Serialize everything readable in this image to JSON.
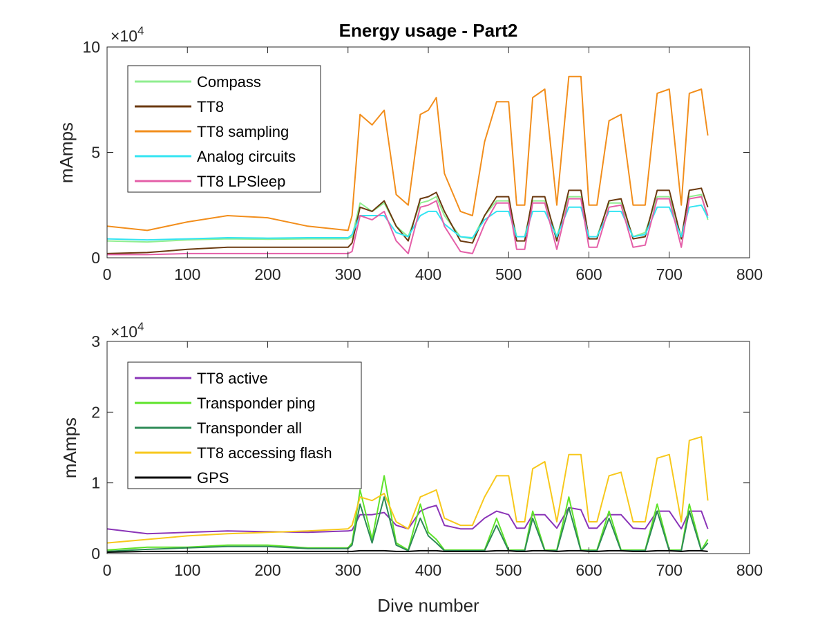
{
  "chart_data": [
    {
      "type": "line",
      "title": "Energy usage - Part2",
      "xlabel": "",
      "ylabel": "mAmps",
      "exponent_label": "×10",
      "exponent_power": "4",
      "xlim": [
        0,
        800
      ],
      "ylim": [
        0,
        100000
      ],
      "xticks": [
        "0",
        "100",
        "200",
        "300",
        "400",
        "500",
        "600",
        "700",
        "800"
      ],
      "yticks": [
        "0",
        "5",
        "10"
      ],
      "legend_position": "top-left",
      "x_keypoints": [
        0,
        50,
        100,
        150,
        200,
        250,
        300,
        305,
        315,
        330,
        345,
        360,
        375,
        390,
        400,
        410,
        420,
        440,
        455,
        470,
        485,
        500,
        510,
        520,
        530,
        545,
        560,
        575,
        590,
        600,
        610,
        625,
        640,
        655,
        670,
        685,
        700,
        715,
        725,
        740,
        748
      ],
      "series": [
        {
          "name": "Compass",
          "color": "#90ee90",
          "values": [
            8000,
            7500,
            8500,
            9000,
            8800,
            9000,
            9000,
            10000,
            26000,
            22000,
            26000,
            15000,
            10000,
            26000,
            27000,
            29000,
            20000,
            10000,
            9000,
            20000,
            27000,
            27000,
            10000,
            10000,
            27000,
            27000,
            10000,
            29000,
            29000,
            10000,
            10000,
            26000,
            26000,
            10000,
            12000,
            29000,
            29000,
            10000,
            29000,
            30000,
            18000
          ]
        },
        {
          "name": "TT8",
          "color": "#6b3a10",
          "values": [
            2000,
            2500,
            4000,
            5000,
            5000,
            5000,
            5000,
            7000,
            24000,
            22000,
            27000,
            15000,
            8000,
            28000,
            29000,
            31000,
            22000,
            8000,
            7000,
            20000,
            29000,
            29000,
            8000,
            8000,
            29000,
            29000,
            8000,
            32000,
            32000,
            9000,
            9000,
            27000,
            28000,
            9000,
            10000,
            32000,
            32000,
            9000,
            32000,
            33000,
            24000
          ]
        },
        {
          "name": "TT8 sampling",
          "color": "#f28e1c",
          "values": [
            15000,
            13000,
            17000,
            20000,
            19000,
            15000,
            13000,
            20000,
            68000,
            63000,
            70000,
            30000,
            25000,
            68000,
            70000,
            76000,
            40000,
            22000,
            20000,
            55000,
            74000,
            74000,
            25000,
            25000,
            76000,
            80000,
            25000,
            86000,
            86000,
            25000,
            25000,
            65000,
            68000,
            25000,
            25000,
            78000,
            80000,
            25000,
            78000,
            80000,
            58000
          ]
        },
        {
          "name": "Analog circuits",
          "color": "#33e4f2",
          "values": [
            9000,
            8500,
            9000,
            9500,
            9300,
            9500,
            9500,
            11000,
            20000,
            20000,
            20000,
            12000,
            10000,
            20000,
            22000,
            22000,
            16000,
            10000,
            9500,
            18000,
            22000,
            22000,
            10000,
            10000,
            22000,
            22000,
            10000,
            24000,
            24000,
            10000,
            10000,
            22000,
            22000,
            10000,
            11000,
            24000,
            24000,
            10000,
            24000,
            25000,
            19000
          ]
        },
        {
          "name": "TT8 LPSleep",
          "color": "#e45fa8",
          "values": [
            1500,
            1500,
            2000,
            2000,
            2000,
            2000,
            2000,
            3000,
            20000,
            18000,
            22000,
            8000,
            2000,
            24000,
            25000,
            27000,
            15000,
            3000,
            2000,
            16000,
            26000,
            26000,
            4000,
            4000,
            26000,
            26000,
            4000,
            28000,
            28000,
            5000,
            5000,
            24000,
            25000,
            5000,
            6000,
            28000,
            28000,
            5000,
            28000,
            29000,
            20000
          ]
        }
      ]
    },
    {
      "type": "line",
      "title": "",
      "xlabel": "Dive number",
      "ylabel": "mAmps",
      "exponent_label": "×10",
      "exponent_power": "4",
      "xlim": [
        0,
        800
      ],
      "ylim": [
        0,
        30000
      ],
      "xticks": [
        "0",
        "100",
        "200",
        "300",
        "400",
        "500",
        "600",
        "700",
        "800"
      ],
      "yticks": [
        "0",
        "1",
        "2",
        "3"
      ],
      "legend_position": "top-left",
      "x_keypoints": [
        0,
        50,
        100,
        150,
        200,
        250,
        300,
        305,
        315,
        330,
        345,
        360,
        375,
        390,
        400,
        410,
        420,
        440,
        455,
        470,
        485,
        500,
        510,
        520,
        530,
        545,
        560,
        575,
        590,
        600,
        610,
        625,
        640,
        655,
        670,
        685,
        700,
        715,
        725,
        740,
        748
      ],
      "series": [
        {
          "name": "TT8 active",
          "color": "#8b35b8",
          "values": [
            3500,
            2800,
            3000,
            3200,
            3100,
            3000,
            3200,
            3300,
            5500,
            5500,
            5800,
            4000,
            3500,
            6000,
            6500,
            6800,
            4000,
            3500,
            3500,
            5000,
            6000,
            5500,
            3600,
            3600,
            5500,
            5500,
            3600,
            6500,
            6200,
            3600,
            3600,
            5500,
            5500,
            3600,
            3500,
            6000,
            6000,
            3500,
            6000,
            6000,
            3500
          ]
        },
        {
          "name": "Transponder ping",
          "color": "#5ee32a",
          "values": [
            500,
            900,
            900,
            1200,
            1200,
            800,
            800,
            1500,
            9000,
            2000,
            11000,
            1500,
            500,
            7000,
            3000,
            2000,
            500,
            500,
            500,
            500,
            5000,
            500,
            500,
            500,
            6000,
            500,
            500,
            8000,
            500,
            500,
            500,
            6000,
            500,
            500,
            500,
            7000,
            500,
            500,
            7000,
            500,
            2000
          ]
        },
        {
          "name": "Transponder all",
          "color": "#2e8b57",
          "values": [
            300,
            600,
            800,
            1000,
            1000,
            700,
            700,
            1200,
            7000,
            1500,
            8000,
            1200,
            400,
            5000,
            2500,
            1500,
            400,
            400,
            400,
            400,
            4000,
            400,
            400,
            400,
            5000,
            400,
            400,
            6500,
            400,
            400,
            400,
            5000,
            400,
            400,
            400,
            6000,
            400,
            400,
            6000,
            400,
            1500
          ]
        },
        {
          "name": "TT8 accessing flash",
          "color": "#f7c81c",
          "values": [
            1500,
            2000,
            2500,
            2800,
            3000,
            3200,
            3500,
            4000,
            8000,
            7500,
            8500,
            4500,
            3500,
            8000,
            8500,
            9000,
            5000,
            4000,
            4000,
            8000,
            11000,
            11000,
            4500,
            4500,
            12000,
            13000,
            4500,
            14000,
            14000,
            4500,
            4500,
            11000,
            11500,
            4500,
            4500,
            13500,
            14000,
            4500,
            16000,
            16500,
            7500
          ]
        },
        {
          "name": "GPS",
          "color": "#000000",
          "values": [
            200,
            300,
            300,
            300,
            300,
            300,
            300,
            300,
            400,
            400,
            400,
            300,
            300,
            400,
            400,
            400,
            300,
            300,
            300,
            300,
            400,
            400,
            300,
            300,
            400,
            400,
            300,
            400,
            400,
            300,
            300,
            400,
            400,
            300,
            300,
            400,
            400,
            300,
            400,
            400,
            300
          ]
        }
      ]
    }
  ]
}
